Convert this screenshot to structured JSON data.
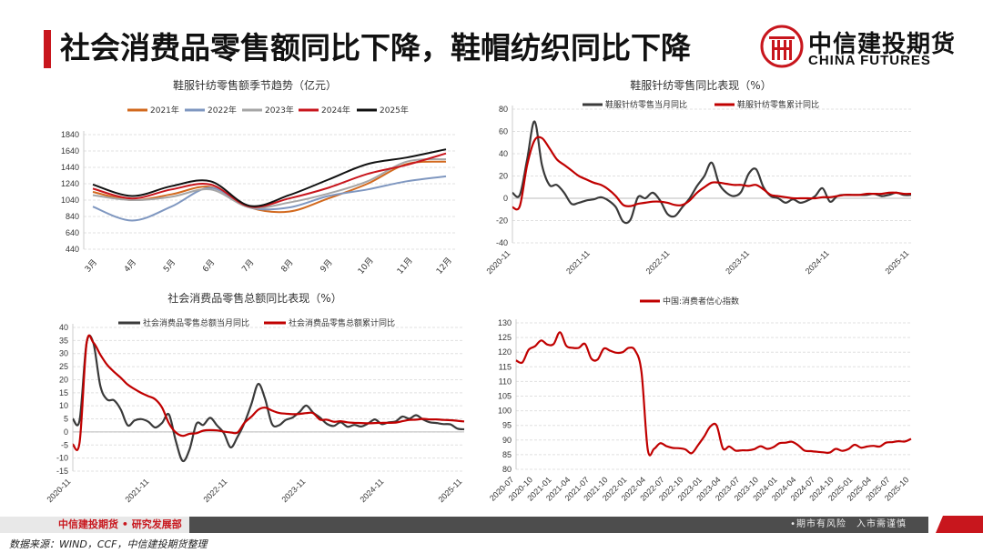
{
  "header": {
    "title": "社会消费品零售额同比下降，鞋帽纺织同比下降",
    "logo_cn": "中信建投期货",
    "logo_en": "CHINA FUTURES"
  },
  "footer": {
    "left": "中信建投期货 • 研究发展部",
    "right": "•期市有风险　入市需谨慎",
    "source": "数据来源：WIND，CCF，中信建投期货整理"
  },
  "colors": {
    "accent": "#c8161d",
    "y2021": "#d2691e",
    "y2022": "#7f97c0",
    "y2023": "#a6a6a6",
    "y2024": "#c8161d",
    "y2025": "#111111",
    "monthly": "#3a3a3a",
    "cumulative": "#c00000"
  },
  "chart_data": [
    {
      "type": "line",
      "title": "鞋服针纺零售额季节趋势（亿元）",
      "categories": [
        "3月",
        "4月",
        "5月",
        "6月",
        "7月",
        "8月",
        "9月",
        "10月",
        "11月",
        "12月"
      ],
      "ylim": [
        440,
        1840
      ],
      "yticks": [
        440,
        640,
        840,
        1040,
        1240,
        1440,
        1640,
        1840
      ],
      "yticks_label": [
        "440",
        "640",
        "840",
        "1040",
        "1240",
        "1440",
        "1640",
        "1840"
      ],
      "grid": true,
      "legend": "top",
      "series": [
        {
          "name": "2021年",
          "color": "#d2691e",
          "values": [
            1140,
            1040,
            1110,
            1200,
            950,
            900,
            1060,
            1240,
            1480,
            1510
          ]
        },
        {
          "name": "2022年",
          "color": "#7f97c0",
          "values": [
            960,
            790,
            960,
            1190,
            950,
            950,
            1090,
            1170,
            1270,
            1330
          ]
        },
        {
          "name": "2023年",
          "color": "#a6a6a6",
          "values": [
            1100,
            1040,
            1080,
            1170,
            950,
            1010,
            1120,
            1270,
            1510,
            1540
          ]
        },
        {
          "name": "2024年",
          "color": "#c8161d",
          "values": [
            1180,
            1060,
            1170,
            1230,
            960,
            1060,
            1190,
            1360,
            1470,
            1610
          ]
        },
        {
          "name": "2025年",
          "color": "#111111",
          "values": [
            1230,
            1090,
            1210,
            1270,
            970,
            1100,
            1290,
            1480,
            1560,
            1660
          ]
        }
      ]
    },
    {
      "type": "line",
      "title": "鞋服针纺零售同比表现（%）",
      "x_labels": [
        "2020-11",
        "2021-11",
        "2022-11",
        "2023-11",
        "2024-11",
        "2025-11"
      ],
      "ylim": [
        -40,
        80
      ],
      "yticks": [
        -40,
        -20,
        0,
        20,
        40,
        60,
        80
      ],
      "yticks_label": [
        "-40",
        "-20",
        "0",
        "20",
        "40",
        "60",
        "80"
      ],
      "grid": true,
      "legend": "top",
      "series": [
        {
          "name": "鞋服针纺零售当月同比",
          "color": "#3a3a3a",
          "values": [
            5,
            3,
            35,
            69,
            30,
            12,
            12,
            5,
            -5,
            -4,
            -2,
            -1,
            1,
            -2,
            -8,
            -21,
            -19,
            1,
            0,
            5,
            -2,
            -14,
            -16,
            -8,
            0,
            11,
            20,
            32,
            13,
            5,
            2,
            6,
            22,
            26,
            10,
            2,
            0,
            -4,
            -1,
            -4,
            -2,
            2,
            9,
            -3,
            2,
            3,
            3,
            3,
            3,
            4,
            2,
            3,
            5,
            3,
            3
          ]
        },
        {
          "name": "鞋服针纺零售累计同比",
          "color": "#c00000",
          "values": [
            -8,
            -7,
            30,
            52,
            54,
            45,
            35,
            30,
            25,
            20,
            17,
            14,
            12,
            8,
            2,
            -6,
            -7,
            -5,
            -4,
            -3,
            -3,
            -4,
            -6,
            -6,
            -2,
            5,
            10,
            14,
            14,
            13,
            12,
            12,
            11,
            12,
            8,
            3,
            2,
            1,
            0,
            0,
            0,
            0,
            1,
            1,
            2,
            3,
            3,
            3,
            4,
            4,
            4,
            5,
            5,
            4,
            4
          ]
        }
      ]
    },
    {
      "type": "line",
      "title": "社会消费品零售总额同比表现（%）",
      "x_labels": [
        "2020-11",
        "2021-11",
        "2022-11",
        "2023-11",
        "2024-11",
        "2025-11"
      ],
      "ylim": [
        -15,
        40
      ],
      "yticks": [
        -15,
        -10,
        -5,
        0,
        5,
        10,
        15,
        20,
        25,
        30,
        35,
        40
      ],
      "yticks_label": [
        "-15",
        "-10",
        "-5",
        "0",
        "5",
        "10",
        "15",
        "20",
        "25",
        "30",
        "35",
        "40"
      ],
      "grid": true,
      "legend": "top",
      "series": [
        {
          "name": "社会消费品零售总额当月同比",
          "color": "#3a3a3a",
          "values": [
            5,
            4.6,
            34,
            34,
            17.7,
            12.4,
            12.1,
            8.5,
            2.5,
            4.4,
            4.9,
            3.9,
            1.7,
            3.5,
            6.7,
            -3.5,
            -11.1,
            -6.7,
            3.1,
            2.7,
            5.4,
            2.5,
            -0.5,
            -5.9,
            -1.8,
            3.5,
            10.6,
            18.4,
            12.7,
            3.1,
            2.5,
            4.6,
            5.5,
            7.6,
            10.1,
            7.4,
            5.5,
            3.1,
            2.3,
            3.7,
            2,
            2.7,
            2.1,
            3.2,
            4.8,
            3,
            3.7,
            4,
            5.9,
            5.1,
            6.4,
            4.8,
            3.7,
            3.4,
            3,
            2.9,
            1.3,
            1
          ]
        },
        {
          "name": "社会消费品零售总额累计同比",
          "color": "#c00000",
          "values": [
            -4.8,
            -3.9,
            33.9,
            34.2,
            29.6,
            25.7,
            23,
            20.7,
            18.1,
            16.4,
            14.9,
            13.7,
            12.5,
            9.3,
            3.3,
            -0.2,
            -1.5,
            -0.7,
            -0.5,
            0.5,
            0.7,
            0.6,
            0.1,
            -0.2,
            -0.2,
            3.5,
            5.8,
            8.5,
            9.3,
            8.2,
            7.3,
            7,
            6.8,
            6.9,
            7.2,
            7.2,
            4.7,
            4.7,
            3.9,
            4.1,
            3.7,
            3.5,
            3.4,
            3.3,
            3.4,
            3.5,
            3.5,
            3.6,
            4.1,
            4.6,
            4.7,
            5,
            4.8,
            4.8,
            4.6,
            4.5,
            4.3,
            4
          ]
        }
      ]
    },
    {
      "type": "line",
      "title": "",
      "x_labels": [
        "2020-07",
        "2020-10",
        "2021-01",
        "2021-04",
        "2021-07",
        "2021-10",
        "2022-01",
        "2022-04",
        "2022-07",
        "2022-10",
        "2023-01",
        "2023-04",
        "2023-07",
        "2023-10",
        "2024-01",
        "2024-04",
        "2024-07",
        "2024-10",
        "2025-01",
        "2025-04",
        "2025-07",
        "2025-10"
      ],
      "ylim": [
        80,
        130
      ],
      "yticks": [
        80,
        85,
        90,
        95,
        100,
        105,
        110,
        115,
        120,
        125,
        130
      ],
      "yticks_label": [
        "80",
        "85",
        "90",
        "95",
        "100",
        "105",
        "110",
        "115",
        "120",
        "125",
        "130"
      ],
      "grid": true,
      "legend": "top",
      "series": [
        {
          "name": "中国:消费者信心指数",
          "color": "#c00000",
          "values": [
            117.2,
            116.5,
            120.8,
            122,
            124,
            122.6,
            122.8,
            126.8,
            122.2,
            121.5,
            121.5,
            122.8,
            117.8,
            117.5,
            121.2,
            120.5,
            119.8,
            120,
            121.5,
            120.5,
            113.2,
            86.7,
            87,
            88.9,
            87.9,
            87.3,
            87.2,
            86.8,
            85.5,
            88.2,
            91.2,
            94.7,
            94.9,
            87.1,
            87.8,
            86.4,
            86.5,
            86.5,
            86.9,
            87.9,
            87,
            87.5,
            88.9,
            89.1,
            89.4,
            88.2,
            86.4,
            86.2,
            86,
            85.8,
            85.7,
            87,
            86.3,
            86.9,
            88.4,
            87.4,
            87.8,
            88,
            87.8,
            89.1,
            89.3,
            89.6,
            89.5,
            90.4
          ]
        }
      ]
    }
  ]
}
